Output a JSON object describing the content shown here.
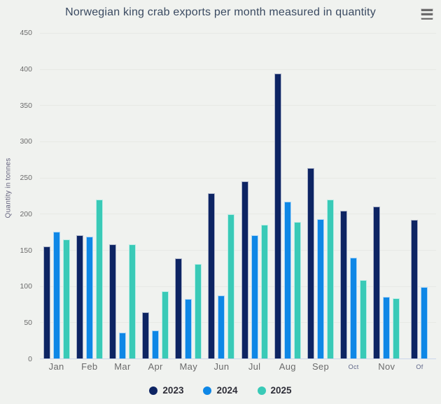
{
  "header": {
    "title": "Norwegian king crab exports per month measured in quantity"
  },
  "icons": {
    "context_menu": "hamburger-menu-icon"
  },
  "chart_data": {
    "type": "bar",
    "title": "Norwegian king crab exports per month measured in quantity",
    "xlabel": "",
    "ylabel": "Quantity in tonnes",
    "ylim": [
      0,
      450
    ],
    "ytick_step": 50,
    "yticks": [
      450,
      400,
      350,
      300,
      250,
      200,
      150,
      100,
      50,
      0
    ],
    "grid": true,
    "legend_position": "bottom",
    "categories": [
      "Jan",
      "Feb",
      "Mar",
      "Apr",
      "May",
      "Jun",
      "Jul",
      "Aug",
      "Sep",
      "Oct",
      "Nov",
      "Of"
    ],
    "small_label_indices": [
      9,
      11
    ],
    "series": [
      {
        "name": "2023",
        "color": "#0d2463",
        "values": [
          155,
          170,
          158,
          64,
          138,
          228,
          245,
          394,
          263,
          204,
          210,
          192
        ]
      },
      {
        "name": "2024",
        "color": "#0e87e6",
        "values": [
          175,
          168,
          36,
          39,
          82,
          87,
          170,
          217,
          193,
          139,
          85,
          99
        ]
      },
      {
        "name": "2025",
        "color": "#39cab7",
        "values": [
          165,
          220,
          158,
          93,
          131,
          199,
          185,
          189,
          220,
          108,
          83,
          null
        ]
      }
    ]
  },
  "colors": {
    "background": "#f0f2ef",
    "gridline": "#e7e9e5",
    "axis_line": "#ccd6eb",
    "tick_label": "#6b6b6b",
    "title": "#3a4a61",
    "small_tick_label": "#5c6487"
  }
}
